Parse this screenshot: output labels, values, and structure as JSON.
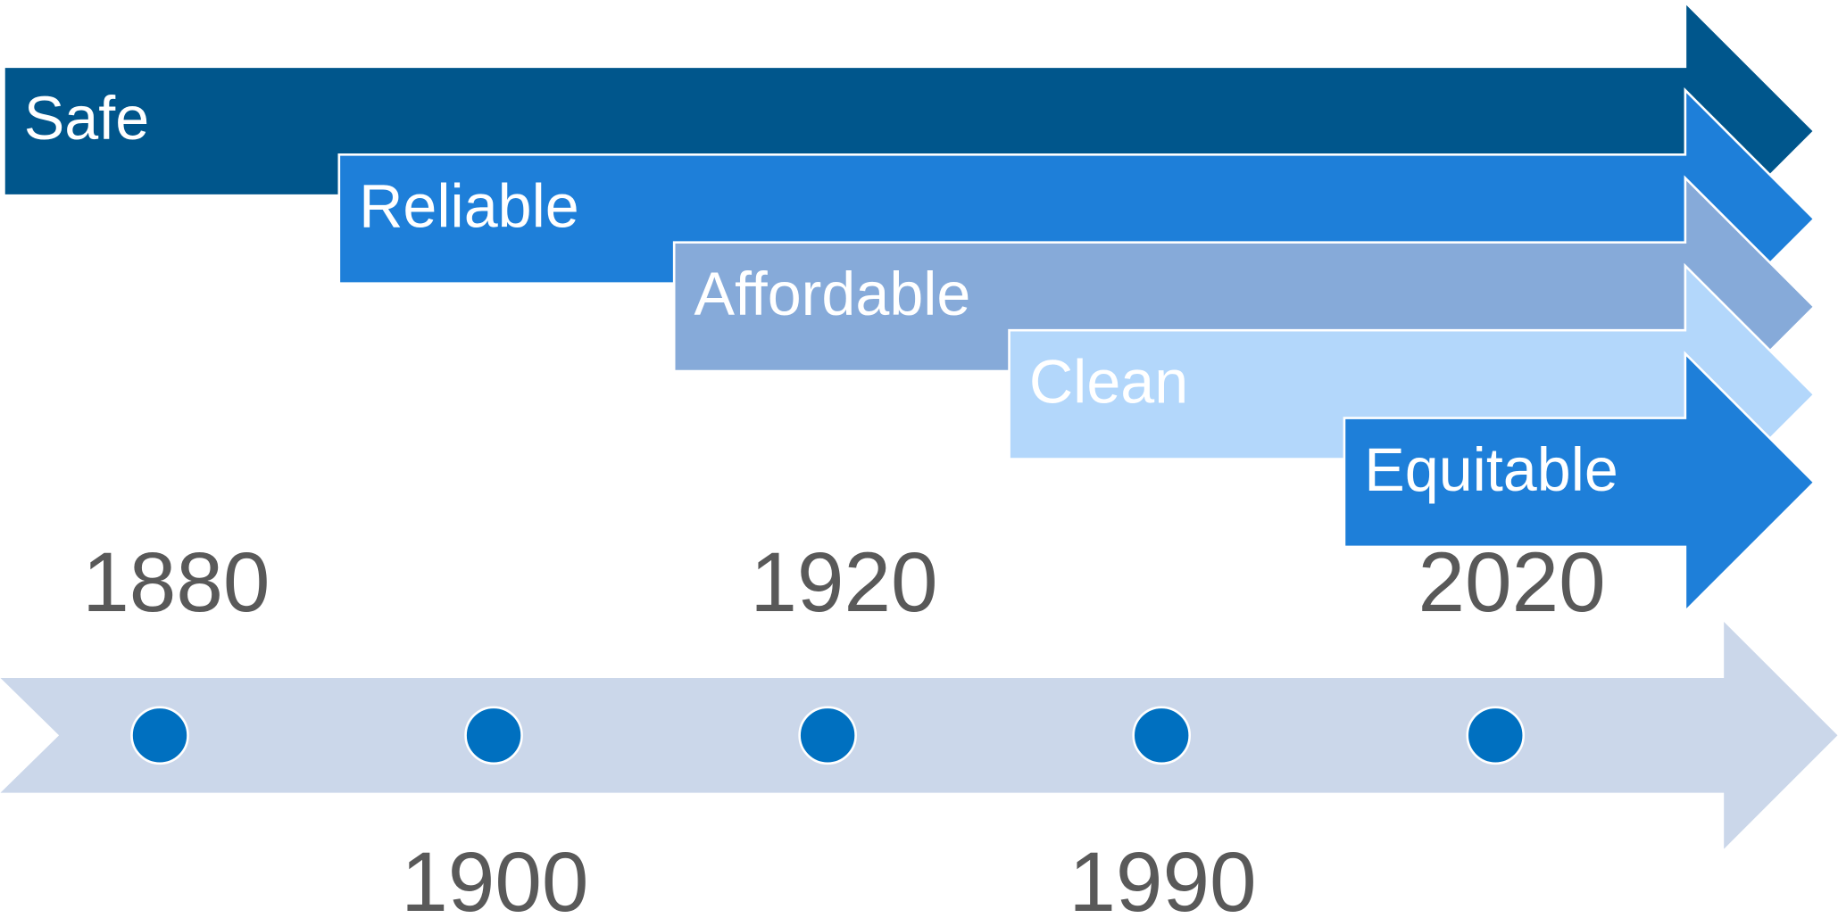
{
  "stages": [
    {
      "label": "Safe",
      "color": "#00568c"
    },
    {
      "label": "Reliable",
      "color": "#1e7fd9"
    },
    {
      "label": "Affordable",
      "color": "#86aad9"
    },
    {
      "label": "Clean",
      "color": "#b3d7fb"
    },
    {
      "label": "Equitable",
      "color": "#1e7fd9"
    }
  ],
  "timeline": {
    "color": "#cbd7ea",
    "dot_color": "#0070c0",
    "years": [
      1880,
      1900,
      1920,
      1990,
      2020
    ]
  }
}
